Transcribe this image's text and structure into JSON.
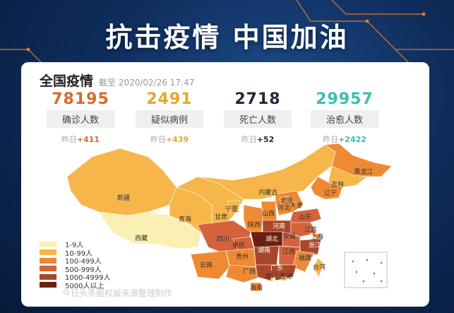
{
  "banner": {
    "title": "抗击疫情 中国加油"
  },
  "header": {
    "title": "全国疫情",
    "timestamp": "截至 2020/02/26 17:47"
  },
  "stats": [
    {
      "value": "78195",
      "label": "确诊人数",
      "prefix": "昨日",
      "delta": "+411",
      "color": "#d9692a"
    },
    {
      "value": "2491",
      "label": "疑似病例",
      "prefix": "昨日",
      "delta": "+439",
      "color": "#e8a628"
    },
    {
      "value": "2718",
      "label": "死亡人数",
      "prefix": "昨日",
      "delta": "+52",
      "color": "#1d2b3a"
    },
    {
      "value": "29957",
      "label": "治愈人数",
      "prefix": "昨日",
      "delta": "+2422",
      "color": "#3bbfb0"
    }
  ],
  "legend": [
    {
      "label": "1-9人",
      "color": "#fbf0b4"
    },
    {
      "label": "10-99人",
      "color": "#f6b64a"
    },
    {
      "label": "100-499人",
      "color": "#ef8a34"
    },
    {
      "label": "500-999人",
      "color": "#d4623a"
    },
    {
      "label": "1000-4999人",
      "color": "#a8472a"
    },
    {
      "label": "5000人以上",
      "color": "#6a200e"
    }
  ],
  "provinces": [
    {
      "name": "新疆",
      "tier": 1
    },
    {
      "name": "西藏",
      "tier": 0
    },
    {
      "name": "青海",
      "tier": 1
    },
    {
      "name": "甘肃",
      "tier": 1
    },
    {
      "name": "内蒙古",
      "tier": 1
    },
    {
      "name": "黑龙江",
      "tier": 2
    },
    {
      "name": "吉林",
      "tier": 1
    },
    {
      "name": "辽宁",
      "tier": 2
    },
    {
      "name": "宁夏",
      "tier": 1
    },
    {
      "name": "山西",
      "tier": 2
    },
    {
      "name": "河北",
      "tier": 2
    },
    {
      "name": "北京",
      "tier": 2
    },
    {
      "name": "天津",
      "tier": 2
    },
    {
      "name": "山东",
      "tier": 3
    },
    {
      "name": "陕西",
      "tier": 2
    },
    {
      "name": "河南",
      "tier": 4
    },
    {
      "name": "江苏",
      "tier": 3
    },
    {
      "name": "安徽",
      "tier": 3
    },
    {
      "name": "上海",
      "tier": 2
    },
    {
      "name": "湖北",
      "tier": 5
    },
    {
      "name": "浙江",
      "tier": 4
    },
    {
      "name": "四川",
      "tier": 3
    },
    {
      "name": "重庆",
      "tier": 3
    },
    {
      "name": "湖南",
      "tier": 4
    },
    {
      "name": "江西",
      "tier": 3
    },
    {
      "name": "贵州",
      "tier": 2
    },
    {
      "name": "福建",
      "tier": 2
    },
    {
      "name": "云南",
      "tier": 2
    },
    {
      "name": "广西",
      "tier": 2
    },
    {
      "name": "广东",
      "tier": 4
    },
    {
      "name": "台湾",
      "tier": 1
    },
    {
      "name": "海南",
      "tier": 2
    },
    {
      "name": "香港",
      "tier": 1
    },
    {
      "name": "澳门",
      "tier": 0
    }
  ],
  "source": "今日头条据权威来源整理制作"
}
